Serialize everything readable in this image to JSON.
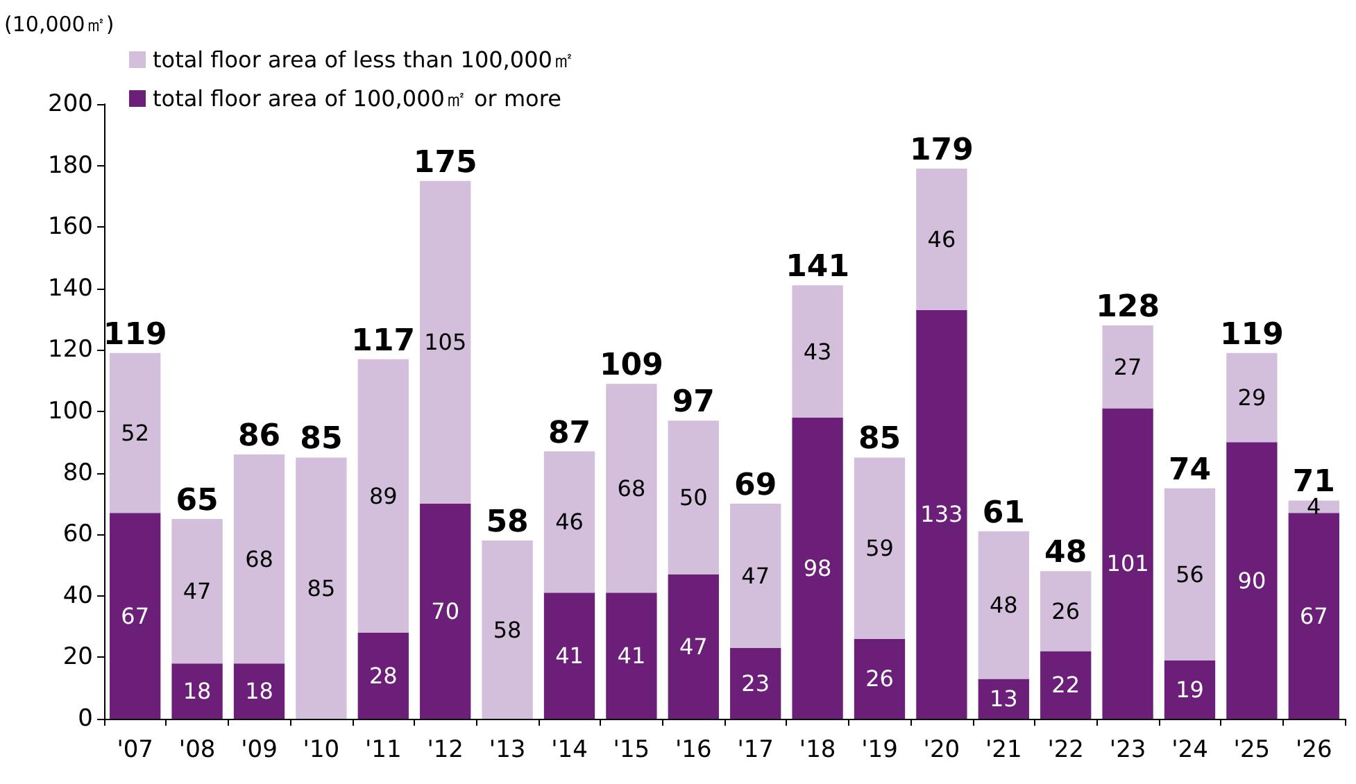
{
  "chart_data": {
    "type": "bar",
    "stacked": true,
    "ylabel": "(10,000㎡)",
    "categories": [
      "'07",
      "'08",
      "'09",
      "'10",
      "'11",
      "'12",
      "'13",
      "'14",
      "'15",
      "'16",
      "'17",
      "'18",
      "'19",
      "'20",
      "'21",
      "'22",
      "'23",
      "'24",
      "'25",
      "'26"
    ],
    "series": [
      {
        "name": "total floor area of 100,000㎡ or more",
        "color": "#6b1f78",
        "values": [
          67,
          18,
          18,
          null,
          28,
          70,
          null,
          41,
          41,
          47,
          23,
          98,
          26,
          133,
          13,
          22,
          101,
          19,
          90,
          67
        ]
      },
      {
        "name": "total floor area of less than 100,000㎡",
        "color": "#d3bedb",
        "values": [
          52,
          47,
          68,
          85,
          89,
          105,
          58,
          46,
          68,
          50,
          47,
          43,
          59,
          46,
          48,
          26,
          27,
          56,
          29,
          4
        ]
      }
    ],
    "totals": [
      "119",
      "65",
      "86",
      "85",
      "117",
      "175",
      "58",
      "87",
      "109",
      "97",
      "69",
      "141",
      "85",
      "179",
      "61",
      "48",
      "128",
      "74",
      "119",
      "71"
    ],
    "ylim": [
      0,
      200
    ],
    "yticks": [
      0,
      20,
      40,
      60,
      80,
      100,
      120,
      140,
      160,
      180,
      200
    ],
    "data_labels": true,
    "grid": false,
    "legend": "top left"
  }
}
